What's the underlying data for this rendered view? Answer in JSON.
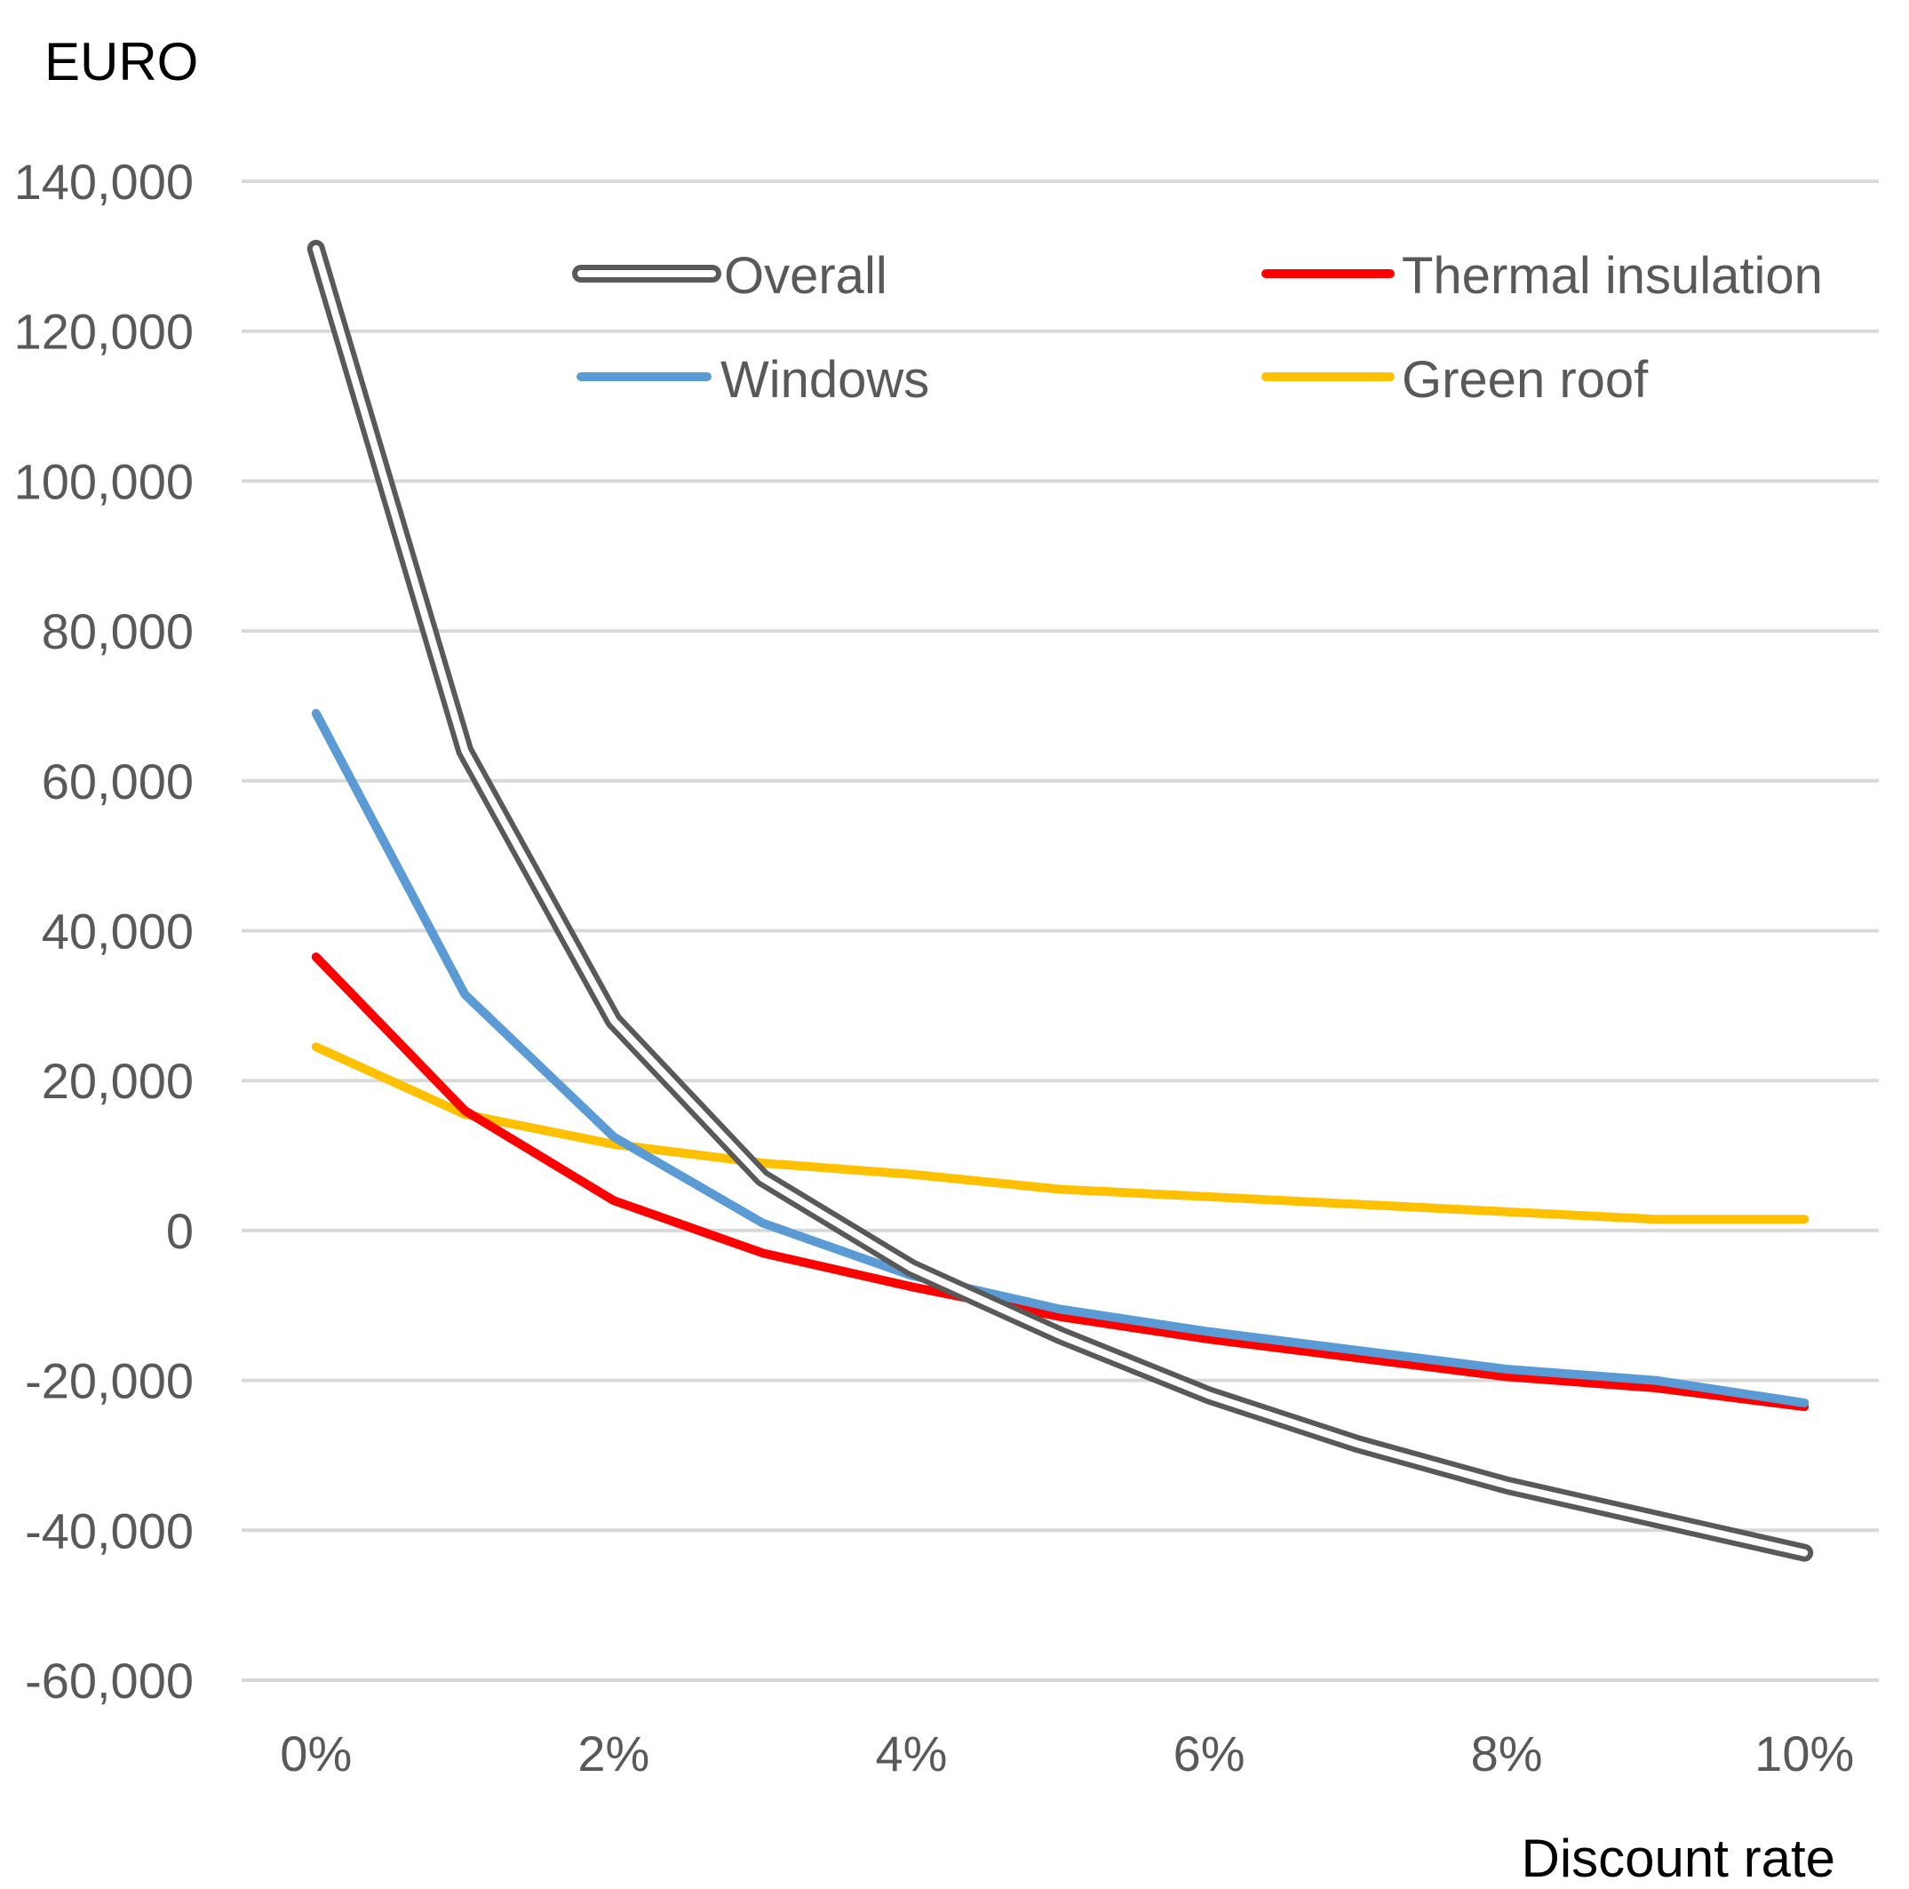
{
  "chart_data": {
    "type": "line",
    "title": "",
    "ylabel": "EURO",
    "xlabel": "Discount rate",
    "x": [
      0,
      1,
      2,
      3,
      4,
      5,
      6,
      7,
      8,
      9,
      10
    ],
    "xticks": [
      {
        "value": 0,
        "label": "0%"
      },
      {
        "value": 2,
        "label": "2%"
      },
      {
        "value": 4,
        "label": "4%"
      },
      {
        "value": 6,
        "label": "6%"
      },
      {
        "value": 8,
        "label": "8%"
      },
      {
        "value": 10,
        "label": "10%"
      }
    ],
    "yticks": [
      {
        "value": 140000,
        "label": "140,000"
      },
      {
        "value": 120000,
        "label": "120,000"
      },
      {
        "value": 100000,
        "label": "100,000"
      },
      {
        "value": 80000,
        "label": "80,000"
      },
      {
        "value": 60000,
        "label": "60,000"
      },
      {
        "value": 40000,
        "label": "40,000"
      },
      {
        "value": 20000,
        "label": "20,000"
      },
      {
        "value": 0,
        "label": "0"
      },
      {
        "value": -20000,
        "label": "-20,000"
      },
      {
        "value": -40000,
        "label": "-40,000"
      },
      {
        "value": -60000,
        "label": "-60,000"
      }
    ],
    "xlim": [
      -0.5,
      10.5
    ],
    "ylim": [
      -60000,
      140000
    ],
    "grid": true,
    "legend_position": "top",
    "series": [
      {
        "name": "Overall",
        "key": "overall",
        "color": "#595959",
        "style": "double",
        "values": [
          131000,
          64000,
          28000,
          7000,
          -5000,
          -14000,
          -22000,
          -28500,
          -34000,
          -38500,
          -43000
        ]
      },
      {
        "name": "Thermal insulation",
        "key": "thermal",
        "color": "#ff0000",
        "style": "solid",
        "values": [
          36500,
          16000,
          4000,
          -3000,
          -7500,
          -11500,
          -14500,
          -17000,
          -19500,
          -21000,
          -23500
        ]
      },
      {
        "name": "Windows",
        "key": "windows",
        "color": "#5b9bd5",
        "style": "solid",
        "values": [
          69000,
          31500,
          12500,
          1000,
          -6000,
          -10500,
          -13500,
          -16000,
          -18500,
          -20000,
          -23000
        ]
      },
      {
        "name": "Green roof",
        "key": "greenroof",
        "color": "#ffc000",
        "style": "solid",
        "values": [
          24500,
          15500,
          11500,
          9000,
          7500,
          5500,
          4500,
          3500,
          2500,
          1500,
          1500
        ]
      }
    ]
  }
}
